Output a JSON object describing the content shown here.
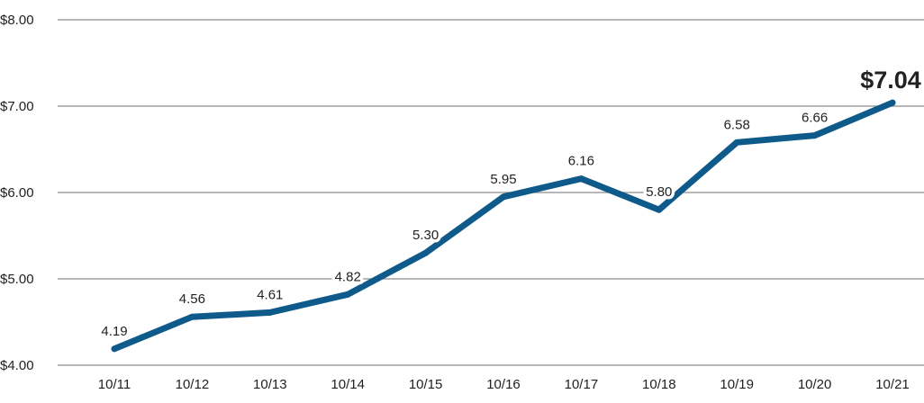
{
  "chart_data": {
    "type": "line",
    "title": "",
    "xlabel": "",
    "ylabel": "",
    "categories": [
      "10/11",
      "10/12",
      "10/13",
      "10/14",
      "10/15",
      "10/16",
      "10/17",
      "10/18",
      "10/19",
      "10/20",
      "10/21"
    ],
    "series": [
      {
        "values": [
          4.19,
          4.56,
          4.61,
          4.82,
          5.3,
          5.95,
          6.16,
          5.8,
          6.58,
          6.66,
          7.04
        ]
      }
    ],
    "data_labels": [
      "4.19",
      "4.56",
      "4.61",
      "4.82",
      "5.30",
      "5.95",
      "6.16",
      "5.80",
      "6.58",
      "6.66",
      "$7.04"
    ],
    "y_ticks": [
      4,
      5,
      6,
      7,
      8
    ],
    "y_tick_labels": [
      "$4.00",
      "$5.00",
      "$6.00",
      "$7.00",
      "$8.00"
    ],
    "ylim": [
      4,
      8
    ],
    "grid": true,
    "legend": "none",
    "colors": {
      "line": "#0e5a8a",
      "grid": "#8c8c8c",
      "text": "#222222"
    }
  }
}
